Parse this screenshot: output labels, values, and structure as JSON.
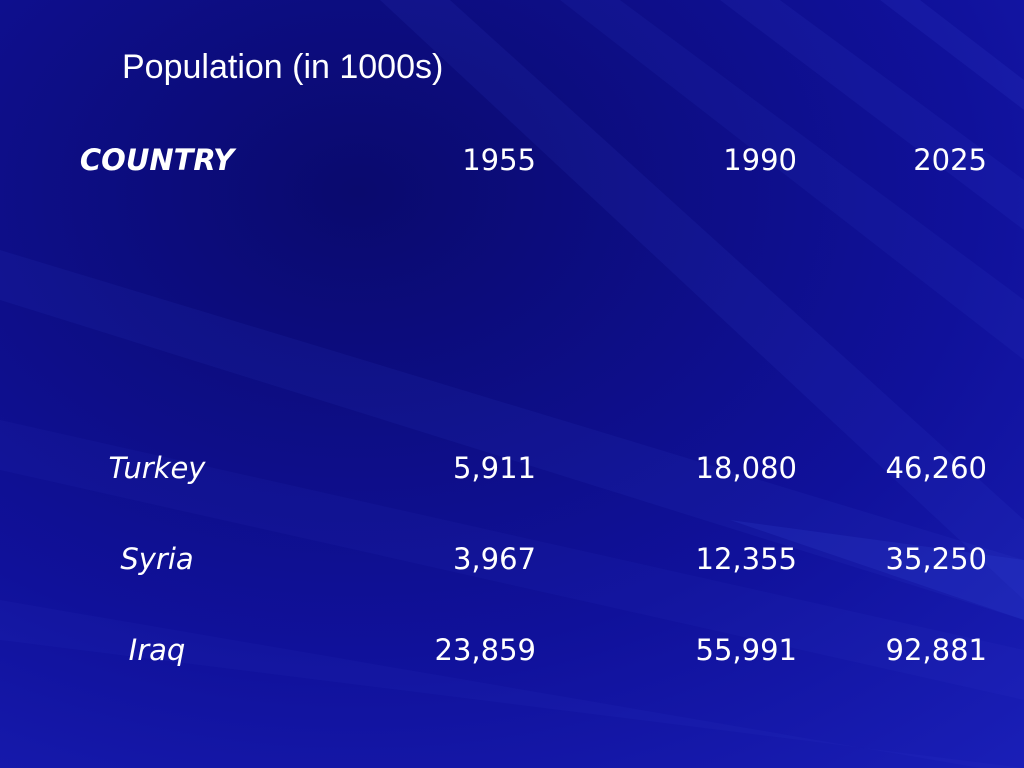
{
  "title": "Population (in 1000s)",
  "table": {
    "header": [
      "COUNTRY",
      "1955",
      "1990",
      "2025"
    ],
    "rows": [
      [
        "Turkey",
        "5,911",
        "18,080",
        "46,260"
      ],
      [
        "Syria",
        "3,967",
        "12,355",
        "35,250"
      ],
      [
        "Iraq",
        "23,859",
        "55,991",
        "92,881"
      ]
    ]
  }
}
